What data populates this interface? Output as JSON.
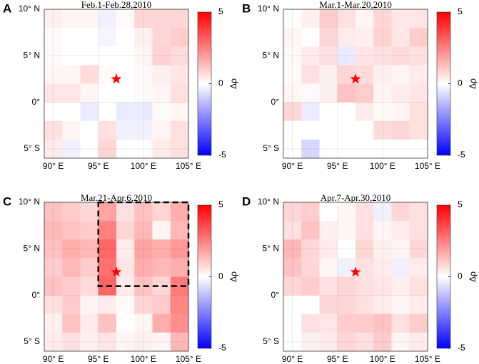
{
  "chart_data": [
    {
      "type": "heatmap",
      "panel": "A",
      "title": "Feb.1-Feb.28,2010",
      "x": [
        90,
        92,
        94,
        96,
        98,
        100,
        102,
        104
      ],
      "y": [
        9,
        7,
        5,
        3,
        1,
        -1,
        -3,
        -5
      ],
      "z": [
        [
          0.3,
          0.2,
          0.2,
          -0.3,
          0.1,
          0.8,
          0.8,
          0.8
        ],
        [
          0.1,
          0,
          0,
          -0.2,
          0,
          0.3,
          0.8,
          1.0
        ],
        [
          0.1,
          0,
          0,
          0,
          0,
          0.2,
          0.9,
          0.7
        ],
        [
          0.2,
          0.2,
          0.7,
          0.1,
          0,
          0.1,
          0.3,
          0.5
        ],
        [
          0.5,
          0.5,
          0.2,
          0,
          0,
          0.1,
          0.2,
          0.6
        ],
        [
          0,
          0,
          -0.4,
          0,
          -0.4,
          -0.4,
          0.1,
          0.2
        ],
        [
          0.6,
          0.2,
          0,
          0.6,
          -0.3,
          -0.3,
          0.2,
          0.6
        ],
        [
          0.4,
          -0.3,
          0,
          0.8,
          0,
          0,
          0.4,
          0.6
        ]
      ],
      "xlim": [
        89,
        105
      ],
      "ylim": [
        -6,
        10
      ],
      "xticks": [
        {
          "value": 90,
          "label": "90° E"
        },
        {
          "value": 95,
          "label": "95° E"
        },
        {
          "value": 100,
          "label": "100° E"
        },
        {
          "value": 105,
          "label": "105° E"
        }
      ],
      "yticks": [
        {
          "value": 10,
          "label": "10° N"
        },
        {
          "value": 5,
          "label": "5° N"
        },
        {
          "value": 0,
          "label": "0°"
        },
        {
          "value": -5,
          "label": "5° S"
        }
      ],
      "clim": [
        -5,
        5
      ],
      "cticks": [
        5,
        0,
        -5
      ],
      "colorbar_label": "Δρ",
      "colormap": [
        "#0000ff",
        "#ffffff",
        "#ff0000"
      ],
      "star": {
        "x": 97,
        "y": 2.5,
        "color": "#ff0000"
      }
    },
    {
      "type": "heatmap",
      "panel": "B",
      "title": "Mar.1-Mar.20,2010",
      "x": [
        90,
        92,
        94,
        96,
        98,
        100,
        102,
        104
      ],
      "y": [
        9,
        7,
        5,
        3,
        1,
        -1,
        -3,
        -5
      ],
      "z": [
        [
          0,
          0.3,
          1.0,
          0.6,
          0.2,
          0.8,
          0.5,
          0.5
        ],
        [
          0.2,
          0,
          0.8,
          0.4,
          0.3,
          0.9,
          0.5,
          1.0
        ],
        [
          0.1,
          0.4,
          0.6,
          -0.4,
          0.5,
          0.6,
          0.7,
          0.6
        ],
        [
          0.1,
          0.6,
          0.3,
          0.8,
          0.7,
          0.3,
          0.2,
          0.4
        ],
        [
          0.2,
          0.1,
          0.3,
          1.2,
          1.0,
          0.2,
          0.4,
          0.5
        ],
        [
          0.8,
          -0.4,
          0,
          0,
          0.4,
          0.1,
          0.2,
          0.6
        ],
        [
          0,
          0,
          0,
          0,
          0,
          0.7,
          0.8,
          0.6
        ],
        [
          0,
          -0.8,
          0,
          0,
          0,
          0,
          0,
          0
        ]
      ],
      "xlim": [
        89,
        105
      ],
      "ylim": [
        -6,
        10
      ],
      "xticks": [
        {
          "value": 90,
          "label": "90° E"
        },
        {
          "value": 95,
          "label": "95° E"
        },
        {
          "value": 100,
          "label": "100° E"
        },
        {
          "value": 105,
          "label": "105° E"
        }
      ],
      "yticks": [
        {
          "value": 10,
          "label": "10° N"
        },
        {
          "value": 5,
          "label": "5° N"
        },
        {
          "value": 0,
          "label": "0°"
        },
        {
          "value": -5,
          "label": "5° S"
        }
      ],
      "clim": [
        -5,
        5
      ],
      "cticks": [
        5,
        0,
        -5
      ],
      "colorbar_label": "Δρ",
      "colormap": [
        "#0000ff",
        "#ffffff",
        "#ff0000"
      ],
      "star": {
        "x": 97,
        "y": 2.5,
        "color": "#ff0000"
      }
    },
    {
      "type": "heatmap",
      "panel": "C",
      "title": "Mar.21-Apr.6,2010",
      "x": [
        90,
        92,
        94,
        96,
        98,
        100,
        102,
        104
      ],
      "y": [
        9,
        7,
        5,
        3,
        1,
        -1,
        -3,
        -5
      ],
      "z": [
        [
          1.2,
          1.0,
          0.8,
          1.8,
          0.6,
          1.2,
          0.8,
          1.6
        ],
        [
          1.4,
          1.2,
          1.0,
          2.5,
          0.8,
          1.4,
          0.2,
          1.4
        ],
        [
          1.2,
          1.6,
          1.4,
          3.0,
          0.4,
          1.8,
          1.6,
          2.0
        ],
        [
          1.0,
          1.4,
          1.0,
          2.8,
          0.5,
          1.6,
          1.4,
          1.6
        ],
        [
          1.2,
          1.0,
          0.7,
          3.0,
          0.4,
          1.2,
          0.8,
          2.6
        ],
        [
          0.6,
          1.0,
          0.2,
          0.4,
          0.1,
          0.8,
          1.0,
          2.4
        ],
        [
          0.3,
          1.2,
          0.4,
          1.2,
          0,
          0.2,
          1.6,
          2.2
        ],
        [
          0.4,
          0.6,
          0.3,
          0.5,
          0.2,
          0.3,
          0.2,
          1.4
        ]
      ],
      "xlim": [
        89,
        105
      ],
      "ylim": [
        -6,
        10
      ],
      "xticks": [
        {
          "value": 90,
          "label": "90° E"
        },
        {
          "value": 95,
          "label": "95° E"
        },
        {
          "value": 100,
          "label": "100° E"
        },
        {
          "value": 105,
          "label": "105° E"
        }
      ],
      "yticks": [
        {
          "value": 10,
          "label": "10° N"
        },
        {
          "value": 5,
          "label": "5° N"
        },
        {
          "value": 0,
          "label": "0°"
        },
        {
          "value": -5,
          "label": "5° S"
        }
      ],
      "clim": [
        -5,
        5
      ],
      "cticks": [
        5,
        0,
        -5
      ],
      "colorbar_label": "Δρ",
      "colormap": [
        "#0000ff",
        "#ffffff",
        "#ff0000"
      ],
      "star": {
        "x": 97,
        "y": 2.5,
        "color": "#ff0000"
      },
      "box": {
        "x": [
          95,
          105
        ],
        "y": [
          1,
          10
        ]
      }
    },
    {
      "type": "heatmap",
      "panel": "D",
      "title": "Apr.7-Apr.30,2010",
      "x": [
        90,
        92,
        94,
        96,
        98,
        100,
        102,
        104
      ],
      "y": [
        9,
        7,
        5,
        3,
        1,
        -1,
        -3,
        -5
      ],
      "z": [
        [
          0.8,
          1.0,
          0,
          0.2,
          0.6,
          -0.3,
          0.8,
          0.6
        ],
        [
          0.6,
          1.2,
          0.3,
          0.2,
          0.6,
          0.2,
          0.4,
          0.6
        ],
        [
          1.4,
          0.8,
          0.4,
          0,
          0.8,
          0.3,
          0.2,
          0.8
        ],
        [
          1.2,
          0.8,
          0.2,
          -0.3,
          0.6,
          0.4,
          -0.3,
          0.4
        ],
        [
          0.8,
          1.0,
          0.6,
          0.8,
          0.6,
          0.5,
          0.3,
          0.6
        ],
        [
          0,
          0,
          0.8,
          0.8,
          0.6,
          0.4,
          0.2,
          0.4
        ],
        [
          0,
          0.6,
          0.5,
          1.0,
          1.0,
          1.2,
          0.6,
          1.0
        ],
        [
          0,
          0.3,
          0.4,
          0.8,
          0.6,
          1.0,
          0.2,
          0.4
        ]
      ],
      "xlim": [
        89,
        105
      ],
      "ylim": [
        -6,
        10
      ],
      "xticks": [
        {
          "value": 90,
          "label": "90° E"
        },
        {
          "value": 95,
          "label": "95° E"
        },
        {
          "value": 100,
          "label": "100° E"
        },
        {
          "value": 105,
          "label": "105° E"
        }
      ],
      "yticks": [
        {
          "value": 10,
          "label": "10° N"
        },
        {
          "value": 5,
          "label": "5° N"
        },
        {
          "value": 0,
          "label": "0°"
        },
        {
          "value": -5,
          "label": "5° S"
        }
      ],
      "clim": [
        -5,
        5
      ],
      "cticks": [
        5,
        0,
        -5
      ],
      "colorbar_label": "Δρ",
      "colormap": [
        "#0000ff",
        "#ffffff",
        "#ff0000"
      ],
      "star": {
        "x": 97,
        "y": 2.5,
        "color": "#ff0000"
      }
    }
  ]
}
